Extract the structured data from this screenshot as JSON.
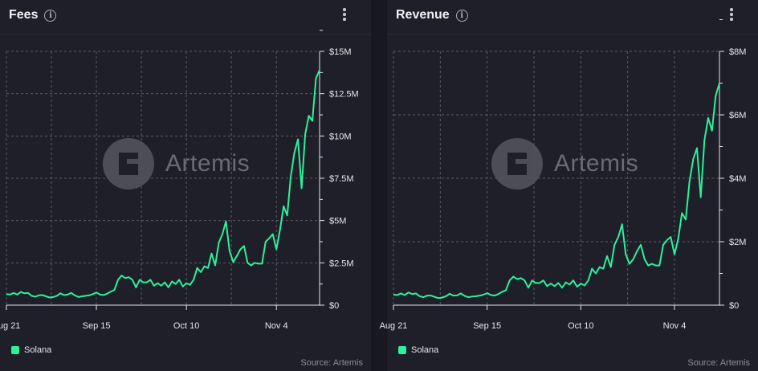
{
  "charts": [
    {
      "title": "Fees",
      "info_icon": "info-icon",
      "menu_icon": "kebab-menu-icon",
      "legend": [
        {
          "name": "Solana",
          "color": "#2ef09a"
        }
      ],
      "source": "Source: Artemis",
      "watermark": "Artemis"
    },
    {
      "title": "Revenue",
      "info_icon": "info-icon",
      "menu_icon": "kebab-menu-icon",
      "legend": [
        {
          "name": "Solana",
          "color": "#2ef09a"
        }
      ],
      "source": "Source: Artemis",
      "watermark": "Artemis"
    }
  ],
  "chart_data": [
    {
      "type": "line",
      "title": "Fees",
      "xlabel": "",
      "ylabel": "",
      "ylim": [
        0,
        15000000
      ],
      "y_ticks": [
        "$0",
        "$2.5M",
        "$5M",
        "$7.5M",
        "$10M",
        "$12.5M",
        "$15M"
      ],
      "x_ticks": [
        "Aug 21",
        "Sep 15",
        "Oct 10",
        "Nov 4"
      ],
      "x_tick_index": [
        0,
        25,
        50,
        75
      ],
      "grid": true,
      "color": "#2ef09a",
      "series": [
        {
          "name": "Solana",
          "values": [
            0.65,
            0.62,
            0.72,
            0.62,
            0.78,
            0.7,
            0.72,
            0.55,
            0.5,
            0.58,
            0.6,
            0.52,
            0.45,
            0.48,
            0.55,
            0.7,
            0.6,
            0.62,
            0.72,
            0.58,
            0.48,
            0.52,
            0.55,
            0.58,
            0.65,
            0.75,
            0.62,
            0.6,
            0.68,
            0.8,
            0.9,
            1.5,
            1.75,
            1.6,
            1.65,
            1.5,
            1.05,
            1.5,
            1.35,
            1.35,
            1.5,
            1.15,
            1.3,
            1.15,
            1.35,
            1.05,
            1.4,
            1.25,
            1.5,
            1.1,
            1.3,
            1.2,
            1.5,
            2.2,
            1.95,
            2.3,
            2.2,
            3.05,
            2.35,
            3.7,
            4.2,
            4.95,
            3.2,
            2.55,
            2.9,
            3.3,
            3.5,
            2.5,
            2.35,
            2.5,
            2.45,
            2.45,
            3.75,
            3.95,
            4.2,
            3.3,
            4.45,
            5.85,
            5.3,
            7.6,
            9.0,
            9.8,
            6.9,
            10.1,
            11.2,
            10.9,
            13.4,
            13.9
          ]
        }
      ]
    },
    {
      "type": "line",
      "title": "Revenue",
      "xlabel": "",
      "ylabel": "",
      "ylim": [
        0,
        8000000
      ],
      "y_ticks": [
        "$0",
        "$2M",
        "$4M",
        "$6M",
        "$8M"
      ],
      "x_ticks": [
        "Aug 21",
        "Sep 15",
        "Oct 10",
        "Nov 4"
      ],
      "x_tick_index": [
        0,
        25,
        50,
        75
      ],
      "grid": true,
      "color": "#2ef09a",
      "series": [
        {
          "name": "Solana",
          "values": [
            0.33,
            0.32,
            0.37,
            0.32,
            0.4,
            0.35,
            0.37,
            0.28,
            0.25,
            0.3,
            0.3,
            0.26,
            0.22,
            0.24,
            0.28,
            0.36,
            0.3,
            0.31,
            0.37,
            0.29,
            0.25,
            0.27,
            0.28,
            0.3,
            0.33,
            0.38,
            0.32,
            0.3,
            0.35,
            0.42,
            0.47,
            0.78,
            0.9,
            0.82,
            0.85,
            0.78,
            0.55,
            0.78,
            0.7,
            0.7,
            0.78,
            0.6,
            0.68,
            0.6,
            0.7,
            0.55,
            0.72,
            0.65,
            0.78,
            0.58,
            0.68,
            0.62,
            0.78,
            1.15,
            1.0,
            1.2,
            1.15,
            1.55,
            1.2,
            1.9,
            2.15,
            2.55,
            1.6,
            1.3,
            1.45,
            1.7,
            1.9,
            1.45,
            1.25,
            1.3,
            1.25,
            1.25,
            1.9,
            2.05,
            2.15,
            1.6,
            2.1,
            2.9,
            2.7,
            3.9,
            4.6,
            4.95,
            3.4,
            5.2,
            5.9,
            5.5,
            6.6,
            7.0
          ]
        }
      ]
    }
  ]
}
